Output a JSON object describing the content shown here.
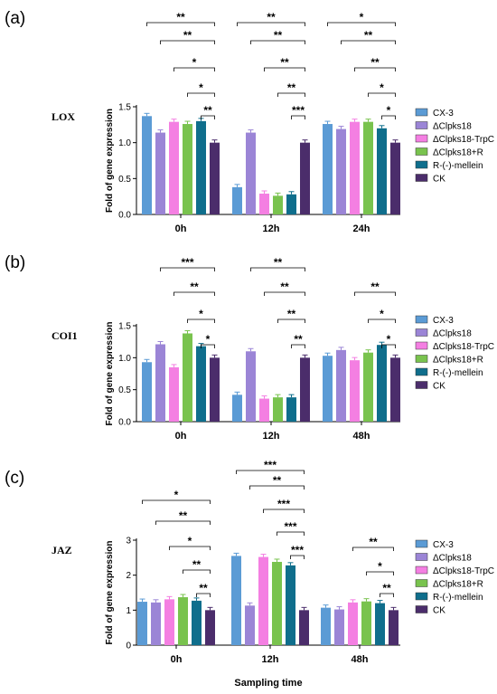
{
  "chart_data": [
    {
      "type": "bar",
      "panel": "(a)",
      "gene": "LOX",
      "ylabel": "Fold of gene expression",
      "xlabel": "",
      "categories": [
        "0h",
        "12h",
        "24h"
      ],
      "ylim": [
        0,
        1.5
      ],
      "yticks": [
        "0.0",
        "0.5",
        "1.0",
        "1.5"
      ],
      "series": [
        {
          "name": "CX-3",
          "color": "#5b9bd5",
          "values": [
            1.37,
            0.38,
            1.26
          ]
        },
        {
          "name": "ΔClpks18",
          "color": "#9b85d6",
          "values": [
            1.14,
            1.14,
            1.19
          ]
        },
        {
          "name": "ΔClpks18-TrpC",
          "color": "#f47fe2",
          "values": [
            1.29,
            0.29,
            1.29
          ]
        },
        {
          "name": "ΔClpks18+R",
          "color": "#79c34e",
          "values": [
            1.26,
            0.26,
            1.29
          ]
        },
        {
          "name": "R-(-)-mellein",
          "color": "#0f6e8c",
          "values": [
            1.3,
            0.28,
            1.2
          ]
        },
        {
          "name": "CK",
          "color": "#4b2d6b",
          "values": [
            1.0,
            1.0,
            1.0
          ]
        }
      ],
      "significance": [
        [
          {
            "label": "**"
          },
          {
            "label": "**"
          },
          {
            "label": "*"
          },
          {
            "label": "*"
          },
          {
            "label": "**"
          }
        ],
        [
          {
            "label": "**"
          },
          {
            "label": "**"
          },
          {
            "label": "**"
          },
          {
            "label": "**"
          },
          {
            "label": "***"
          }
        ],
        [
          {
            "label": "*"
          },
          {
            "label": "**"
          },
          {
            "label": "**"
          },
          {
            "label": "*"
          },
          {
            "label": "*"
          }
        ]
      ]
    },
    {
      "type": "bar",
      "panel": "(b)",
      "gene": "COI1",
      "ylabel": "Fold of gene expression",
      "xlabel": "",
      "categories": [
        "0h",
        "12h",
        "48h"
      ],
      "ylim": [
        0,
        1.5
      ],
      "yticks": [
        "0.0",
        "0.5",
        "1.0",
        "1.5"
      ],
      "series": [
        {
          "name": "CX-3",
          "color": "#5b9bd5",
          "values": [
            0.93,
            0.42,
            1.03
          ]
        },
        {
          "name": "ΔClpks18",
          "color": "#9b85d6",
          "values": [
            1.21,
            1.1,
            1.12
          ]
        },
        {
          "name": "ΔClpks18-TrpC",
          "color": "#f47fe2",
          "values": [
            0.85,
            0.36,
            0.96
          ]
        },
        {
          "name": "ΔClpks18+R",
          "color": "#79c34e",
          "values": [
            1.38,
            0.38,
            1.08
          ]
        },
        {
          "name": "R-(-)-mellein",
          "color": "#0f6e8c",
          "values": [
            1.18,
            0.38,
            1.2
          ]
        },
        {
          "name": "CK",
          "color": "#4b2d6b",
          "values": [
            1.0,
            1.0,
            1.0
          ]
        }
      ],
      "significance": [
        [
          {
            "label": "***"
          },
          {
            "label": "**"
          },
          {
            "label": "*"
          },
          {
            "label": "*"
          }
        ],
        [
          {
            "label": "**"
          },
          {
            "label": "**"
          },
          {
            "label": "**"
          },
          {
            "label": "**"
          }
        ],
        [
          {
            "label": "**"
          },
          {
            "label": "*"
          },
          {
            "label": "*"
          }
        ]
      ]
    },
    {
      "type": "bar",
      "panel": "(c)",
      "gene": "JAZ",
      "ylabel": "Fold of gene expression",
      "xlabel": "Sampling time",
      "categories": [
        "0h",
        "12h",
        "48h"
      ],
      "ylim": [
        0,
        3
      ],
      "yticks": [
        "0",
        "1",
        "2",
        "3"
      ],
      "series": [
        {
          "name": "CX-3",
          "color": "#5b9bd5",
          "values": [
            1.24,
            2.55,
            1.07
          ]
        },
        {
          "name": "ΔClpks18",
          "color": "#9b85d6",
          "values": [
            1.22,
            1.13,
            1.02
          ]
        },
        {
          "name": "ΔClpks18-TrpC",
          "color": "#f47fe2",
          "values": [
            1.31,
            2.52,
            1.22
          ]
        },
        {
          "name": "ΔClpks18+R",
          "color": "#79c34e",
          "values": [
            1.37,
            2.38,
            1.25
          ]
        },
        {
          "name": "R-(-)-mellein",
          "color": "#0f6e8c",
          "values": [
            1.27,
            2.28,
            1.2
          ]
        },
        {
          "name": "CK",
          "color": "#4b2d6b",
          "values": [
            1.0,
            1.0,
            1.0
          ]
        }
      ],
      "significance": [
        [
          {
            "label": "*"
          },
          {
            "label": "**"
          },
          {
            "label": "*"
          },
          {
            "label": "**"
          },
          {
            "label": "**"
          }
        ],
        [
          {
            "label": "***"
          },
          {
            "label": "**"
          },
          {
            "label": "***"
          },
          {
            "label": "***"
          },
          {
            "label": "***"
          }
        ],
        [
          {
            "label": "**"
          },
          {
            "label": "*"
          },
          {
            "label": "**"
          }
        ]
      ]
    }
  ]
}
